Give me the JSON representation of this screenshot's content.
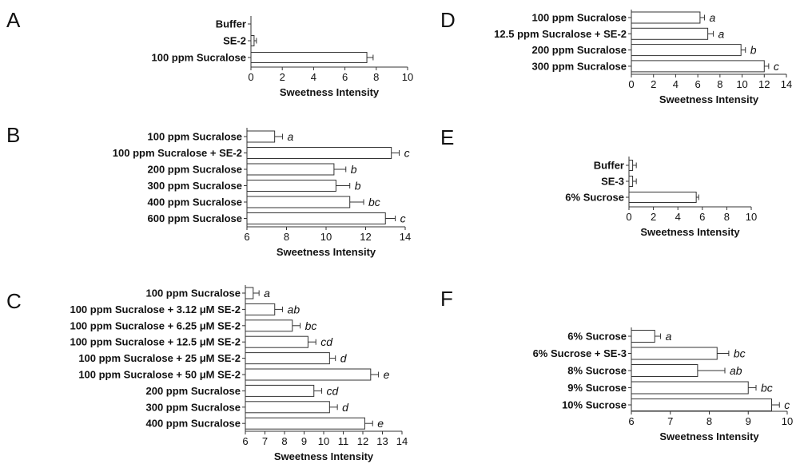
{
  "chart_data": [
    {
      "panel": "A",
      "type": "bar",
      "orientation": "horizontal",
      "categories": [
        "Buffer",
        "SE-2",
        "100 ppm Sucralose"
      ],
      "values": [
        0,
        0.2,
        7.4
      ],
      "errors": [
        0,
        0.15,
        0.4
      ],
      "sig": [
        "",
        "",
        ""
      ],
      "xlim": [
        0,
        10
      ],
      "xticks": [
        "0",
        "2",
        "4",
        "6",
        "8",
        "10"
      ],
      "xlabel": "Sweetness Intensity"
    },
    {
      "panel": "B",
      "type": "bar",
      "orientation": "horizontal",
      "categories": [
        "100 ppm Sucralose",
        "100 ppm Sucralose + SE-2",
        "200 ppm Sucralose",
        "300 ppm Sucralose",
        "400 ppm Sucralose",
        "600 ppm Sucralose"
      ],
      "values": [
        7.4,
        13.3,
        10.4,
        10.5,
        11.2,
        13.0
      ],
      "errors": [
        0.4,
        0.4,
        0.6,
        0.7,
        0.7,
        0.5
      ],
      "sig": [
        "a",
        "c",
        "b",
        "b",
        "bc",
        "c"
      ],
      "xlim": [
        6,
        14
      ],
      "xticks": [
        "6",
        "8",
        "10",
        "12",
        "14"
      ],
      "xlabel": "Sweetness Intensity"
    },
    {
      "panel": "C",
      "type": "bar",
      "orientation": "horizontal",
      "categories": [
        "100 ppm Sucralose",
        "100 ppm Sucralose + 3.12 μM SE-2",
        "100 ppm Sucralose + 6.25 μM SE-2",
        "100 ppm Sucralose + 12.5 μM SE-2",
        "100 ppm Sucralose + 25 μM SE-2",
        "100 ppm Sucralose + 50 μM SE-2",
        "200 ppm Sucralose",
        "300 ppm Sucralose",
        "400 ppm Sucralose"
      ],
      "values": [
        6.4,
        7.5,
        8.4,
        9.2,
        10.3,
        12.4,
        9.5,
        10.3,
        12.1
      ],
      "errors": [
        0.3,
        0.4,
        0.4,
        0.4,
        0.3,
        0.4,
        0.4,
        0.4,
        0.4
      ],
      "sig": [
        "a",
        "ab",
        "bc",
        "cd",
        "d",
        "e",
        "cd",
        "d",
        "e"
      ],
      "xlim": [
        6,
        14
      ],
      "xticks": [
        "6",
        "7",
        "8",
        "9",
        "10",
        "11",
        "12",
        "13",
        "14"
      ],
      "xlabel": "Sweetness Intensity"
    },
    {
      "panel": "D",
      "type": "bar",
      "orientation": "horizontal",
      "categories": [
        "100 ppm Sucralose",
        "12.5 ppm Sucralose + SE-2",
        "200 ppm Sucralose",
        "300 ppm Sucralose"
      ],
      "values": [
        6.2,
        6.9,
        9.9,
        12.0
      ],
      "errors": [
        0.4,
        0.5,
        0.4,
        0.4
      ],
      "sig": [
        "a",
        "a",
        "b",
        "c"
      ],
      "xlim": [
        0,
        14
      ],
      "xticks": [
        "0",
        "2",
        "4",
        "6",
        "8",
        "10",
        "12",
        "14"
      ],
      "xlabel": "Sweetness Intensity"
    },
    {
      "panel": "E",
      "type": "bar",
      "orientation": "horizontal",
      "categories": [
        "Buffer",
        "SE-3",
        "6% Sucrose"
      ],
      "values": [
        0.3,
        0.3,
        5.5
      ],
      "errors": [
        0.3,
        0.3,
        0.2
      ],
      "sig": [
        "",
        "",
        ""
      ],
      "xlim": [
        0,
        10
      ],
      "xticks": [
        "0",
        "2",
        "4",
        "6",
        "8",
        "10"
      ],
      "xlabel": "Sweetness Intensity"
    },
    {
      "panel": "F",
      "type": "bar",
      "orientation": "horizontal",
      "categories": [
        "6% Sucrose",
        "6% Sucrose + SE-3",
        "8% Sucrose",
        "9% Sucrose",
        "10% Sucrose"
      ],
      "values": [
        6.6,
        8.2,
        7.7,
        9.0,
        9.6
      ],
      "errors": [
        0.15,
        0.3,
        0.7,
        0.2,
        0.2
      ],
      "sig": [
        "a",
        "bc",
        "ab",
        "bc",
        "c"
      ],
      "xlim": [
        6,
        10
      ],
      "xticks": [
        "6",
        "7",
        "8",
        "9",
        "10"
      ],
      "xlabel": "Sweetness Intensity"
    }
  ]
}
